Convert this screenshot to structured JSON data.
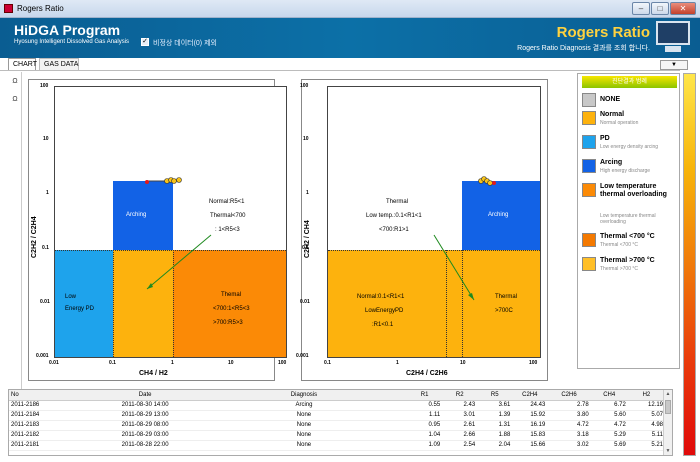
{
  "window": {
    "title": "Rogers Ratio",
    "buttons": {
      "minimize": "–",
      "maximize": "□",
      "close": "✕"
    }
  },
  "banner": {
    "app_name": "HiDGA Program",
    "app_subtitle": "Hyosung Intelligent Dissolved Gas Analysis",
    "checkbox_checked": "✓",
    "checkbox_label": "비정상 데이터(0) 제외",
    "title": "Rogers Ratio",
    "subtitle": "Rogers Ratio Diagnosis 결과를 조회 합니다."
  },
  "tabs": [
    {
      "label": "CHART",
      "active": true
    },
    {
      "label": "GAS DATA",
      "active": false
    }
  ],
  "dropdown": {
    "value": "▼"
  },
  "side_buttons": [
    "Ω",
    "Ω"
  ],
  "colors": {
    "low_pd": "#1ea3ec",
    "arcing": "#1262e6",
    "normal": "#fdb20d",
    "thermal_low": "#fb8a06",
    "point_fill": "#f8c318",
    "point_edge": "#e21a1a",
    "trend_arrow": "#1f8a1f"
  },
  "left_chart": {
    "xlabel": "CH4 / H2",
    "ylabel": "C2H2 / C2H4",
    "x_ticks": [
      "0.01",
      "0.1",
      "1",
      "10",
      "100"
    ],
    "y_ticks": [
      "100",
      "10",
      "1",
      "0.1",
      "0.01",
      "0.001"
    ],
    "regions": {
      "low_pd": [
        "Low",
        "Energy PD"
      ],
      "arcing": "Arching",
      "normal": [
        "Normal:R5<1",
        "Thermal<700",
        ": 1<R5<3"
      ],
      "thermal": [
        "Themal",
        "<700:1<R5<3",
        ">700:R5>3"
      ]
    }
  },
  "right_chart": {
    "xlabel": "C2H4 / C2H6",
    "ylabel": "C2H2 / CH4",
    "x_ticks": [
      "0.1",
      "1",
      "10",
      "100"
    ],
    "y_ticks": [
      "100",
      "10",
      "1",
      "0.1",
      "0.01",
      "0.001"
    ],
    "regions": {
      "thermal_low": [
        "Thermal",
        "Low temp.:0.1<R1<1",
        "<700:R1>1"
      ],
      "arcing": "Arching",
      "normal": [
        "Normal:0.1<R1<1",
        "LowEnergyPD",
        ":R1<0.1"
      ],
      "thermal_high": [
        "Thermal",
        ">700C"
      ]
    }
  },
  "legend": {
    "header": "진단결과 범례",
    "items": [
      {
        "title": "NONE",
        "subtitle": "",
        "color": "#c8c8c8"
      },
      {
        "title": "Normal",
        "subtitle": "Normal operation",
        "color": "#fdb20d"
      },
      {
        "title": "PD",
        "subtitle": "Low energy density arcing",
        "color": "#1ea3ec"
      },
      {
        "title": "Arcing",
        "subtitle": "High energy discharge",
        "color": "#1262e6"
      },
      {
        "title": "Low temperature thermal overloading",
        "subtitle": "Low temperature thermal overloading",
        "color": "#fb8a06"
      },
      {
        "title": "Thermal <700 °C",
        "subtitle": "Thermal <700 °C",
        "color": "#f47900"
      },
      {
        "title": "Thermal >700 °C",
        "subtitle": "Thermal >700 °C",
        "color": "#ffbf27"
      }
    ]
  },
  "table": {
    "columns": [
      "No",
      "Date",
      "Diagnosis",
      "R1",
      "R2",
      "R5",
      "C2H4",
      "C2H6",
      "CH4",
      "H2"
    ],
    "rows": [
      [
        "2011-2186",
        "2011-08-30 14:00",
        "Arcing",
        "0.55",
        "2.43",
        "3.61",
        "24.43",
        "2.78",
        "6.72",
        "12.19"
      ],
      [
        "2011-2184",
        "2011-08-29 13:00",
        "None",
        "1.11",
        "3.01",
        "1.39",
        "15.92",
        "3.80",
        "5.60",
        "5.07"
      ],
      [
        "2011-2183",
        "2011-08-29 08:00",
        "None",
        "0.95",
        "2.61",
        "1.31",
        "16.19",
        "4.72",
        "4.72",
        "4.98"
      ],
      [
        "2011-2182",
        "2011-08-29 03:00",
        "None",
        "1.04",
        "2.66",
        "1.88",
        "15.83",
        "3.18",
        "5.29",
        "5.11"
      ],
      [
        "2011-2181",
        "2011-08-28 22:00",
        "None",
        "1.09",
        "2.54",
        "2.04",
        "15.66",
        "3.02",
        "5.69",
        "5.21"
      ]
    ]
  }
}
